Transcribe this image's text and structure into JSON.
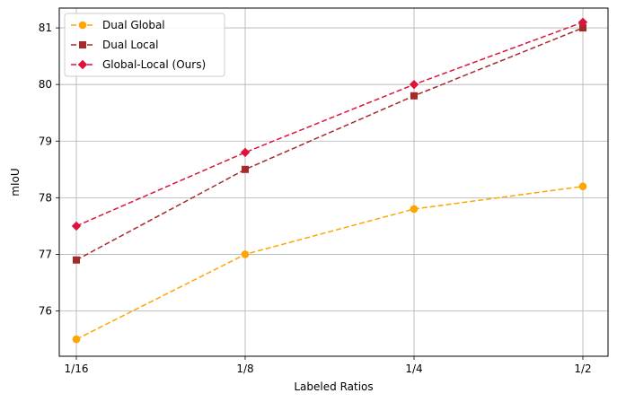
{
  "chart_data": {
    "type": "line",
    "title": "",
    "xlabel": "Labeled Ratios",
    "ylabel": "mIoU",
    "categories": [
      "1/16",
      "1/8",
      "1/4",
      "1/2"
    ],
    "ylim": [
      75.2,
      81.35
    ],
    "yticks": [
      76,
      77,
      78,
      79,
      80,
      81
    ],
    "grid": true,
    "legend_position": "top-left",
    "series": [
      {
        "name": "Dual Global",
        "values": [
          75.5,
          77.0,
          77.8,
          78.2
        ],
        "color": "#FFA500",
        "marker": "circle",
        "linestyle": "dashed"
      },
      {
        "name": "Dual Local",
        "values": [
          76.9,
          78.5,
          79.8,
          81.0
        ],
        "color": "#A52A2A",
        "marker": "square",
        "linestyle": "dashed"
      },
      {
        "name": "Global-Local (Ours)",
        "values": [
          77.5,
          78.8,
          80.0,
          81.1
        ],
        "color": "#DC143C",
        "marker": "diamond",
        "linestyle": "dashed"
      }
    ]
  }
}
